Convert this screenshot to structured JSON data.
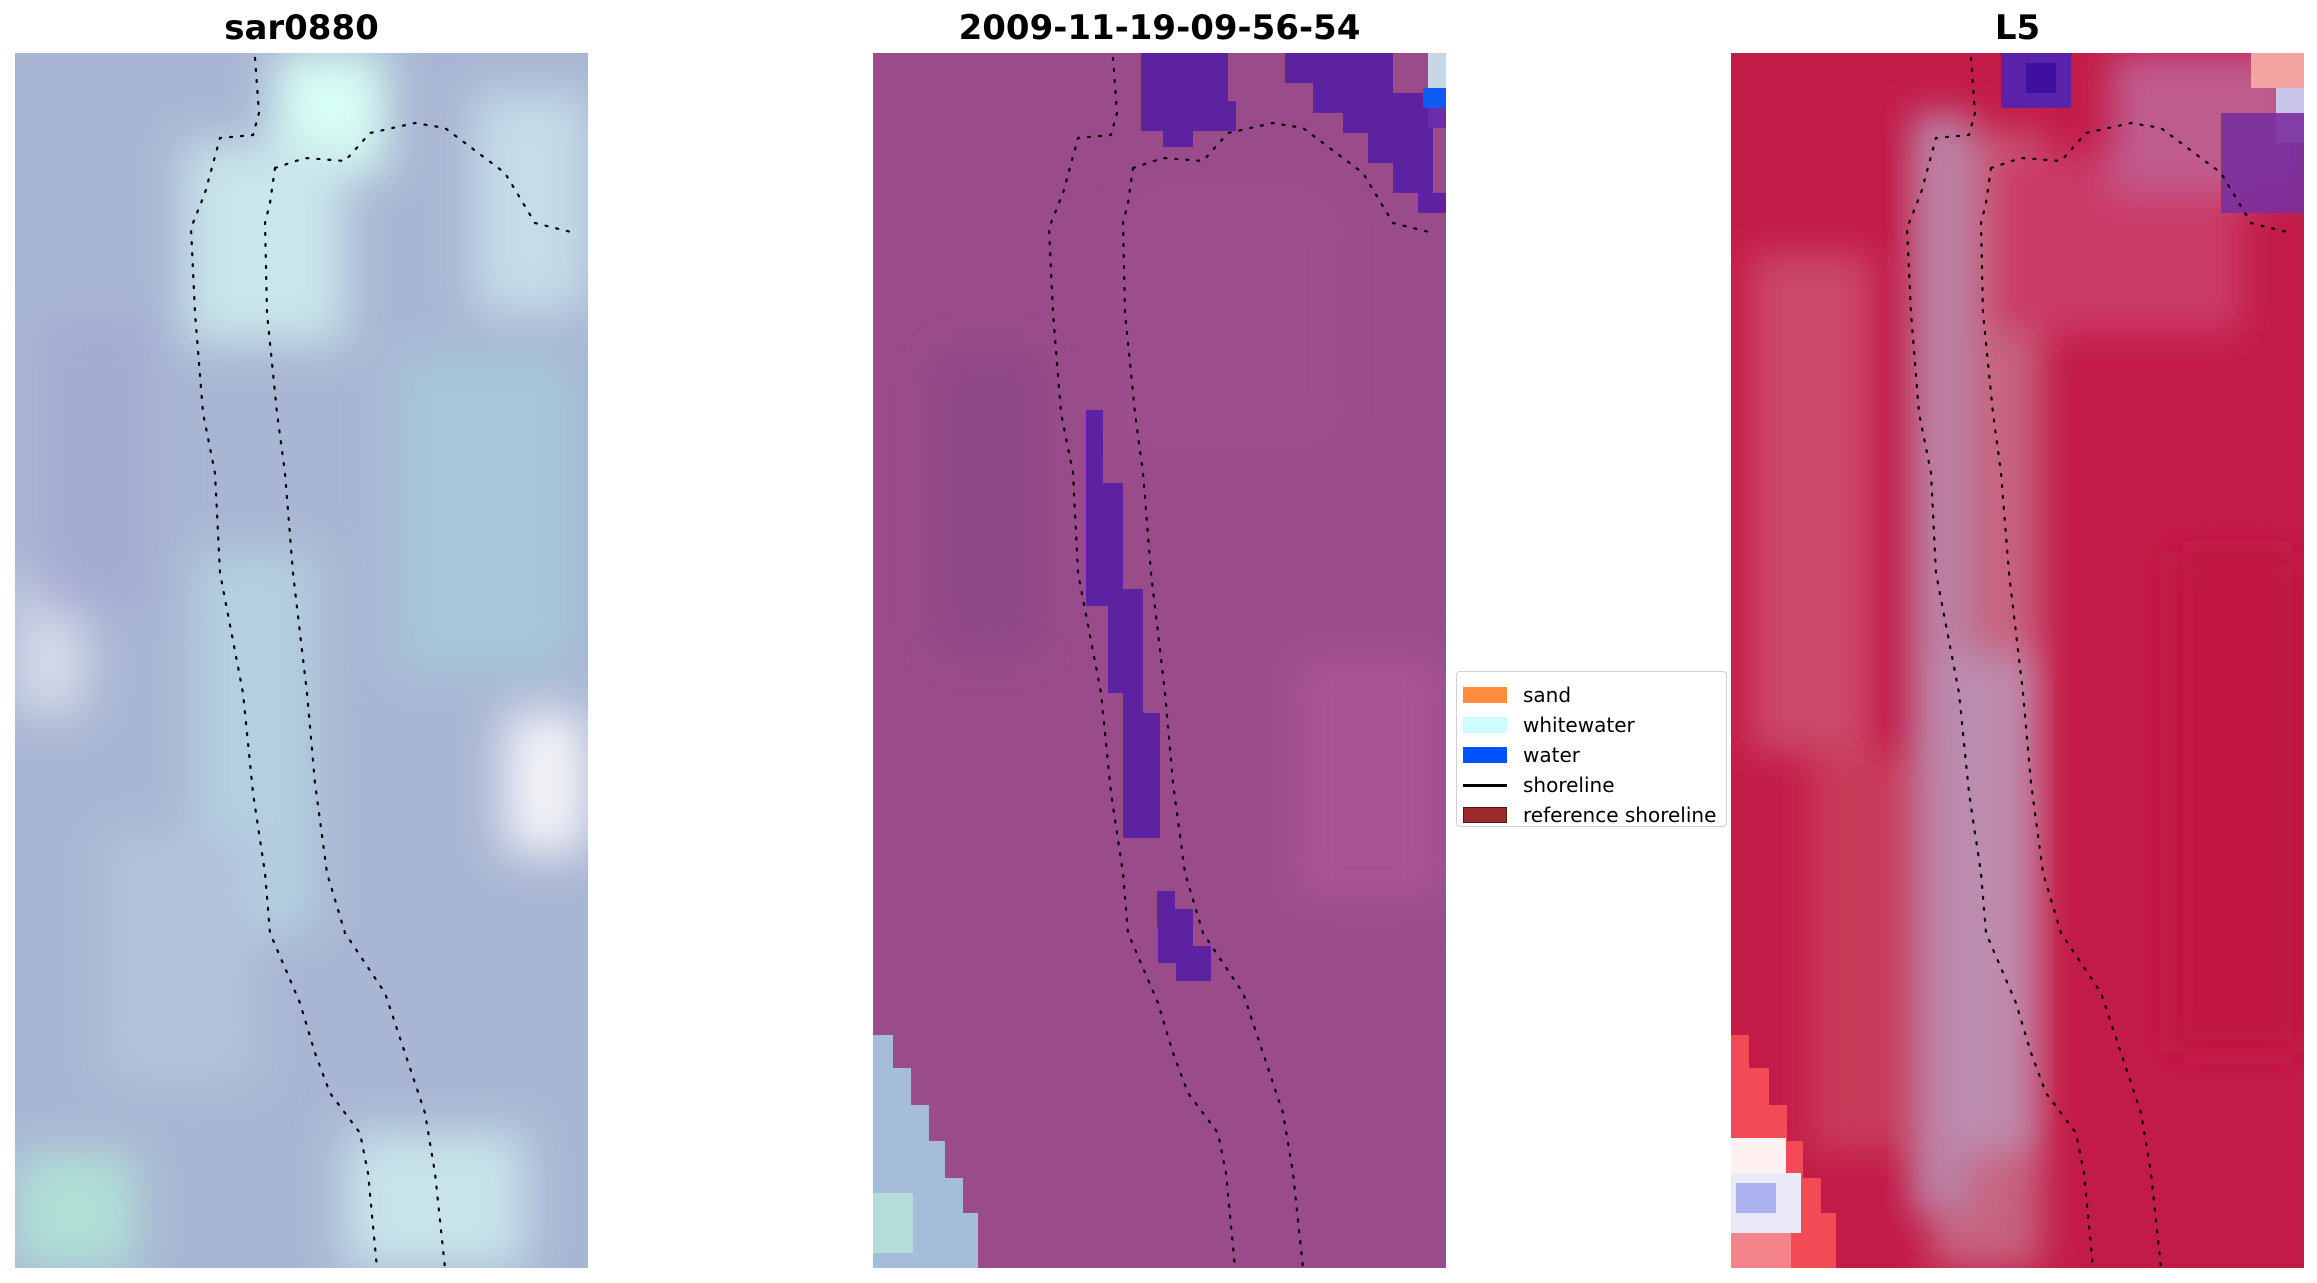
{
  "panels": [
    {
      "title": "sar0880",
      "base_color": "#a6b4d2"
    },
    {
      "title": "2009-11-19-09-56-54",
      "base_color": "#9a4c8a"
    },
    {
      "title": "L5",
      "base_color": "#c31b48"
    }
  ],
  "legend": [
    {
      "label": "sand",
      "color": "#ff8c3a",
      "kind": "patch"
    },
    {
      "label": "whitewater",
      "color": "#ccffff",
      "kind": "patch"
    },
    {
      "label": "water",
      "color": "#0052ff",
      "kind": "patch"
    },
    {
      "label": "shoreline",
      "color": "#000000",
      "kind": "line"
    },
    {
      "label": "reference shoreline",
      "color": "#9b2a2d",
      "kind": "patch"
    }
  ]
}
